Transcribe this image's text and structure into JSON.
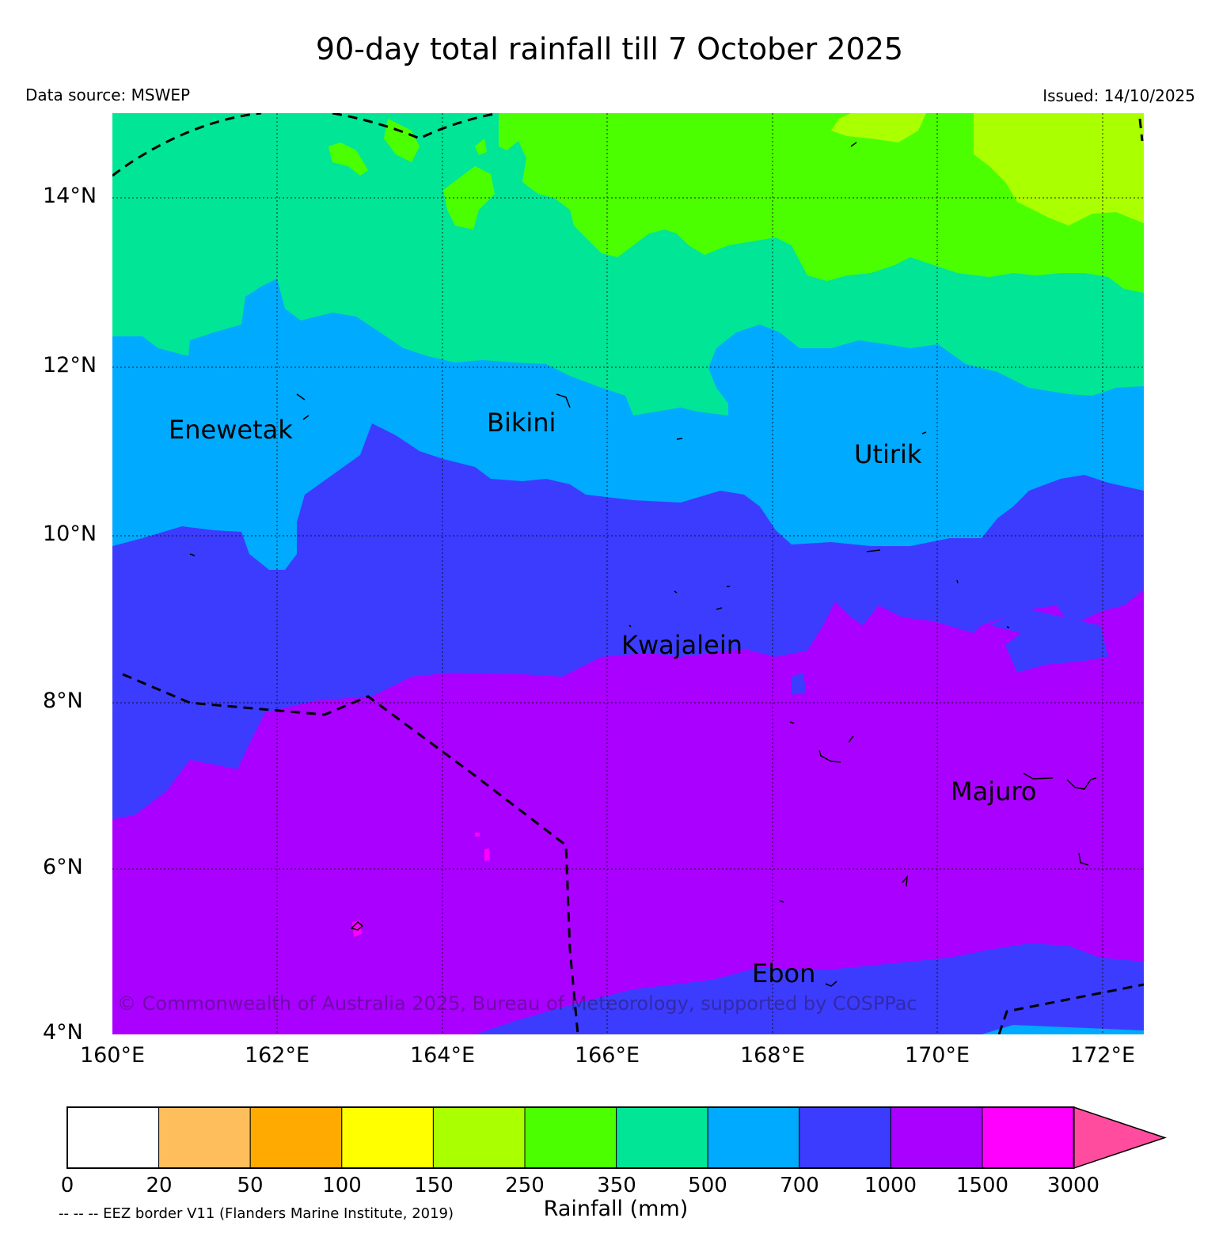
{
  "title": "90-day total rainfall till 7 October 2025",
  "data_source": "Data source: MSWEP",
  "issued": "Issued: 14/10/2025",
  "lat_labels": [
    "14°N",
    "12°N",
    "10°N",
    "8°N",
    "6°N",
    "4°N"
  ],
  "lon_labels": [
    "160°E",
    "162°E",
    "164°E",
    "166°E",
    "168°E",
    "170°E",
    "172°E"
  ],
  "places": [
    "Enewetak",
    "Bikini",
    "Utirik",
    "Kwajalein",
    "Majuro",
    "Ebon"
  ],
  "copyright": "© Commonwealth of Australia 2025, Bureau of Meteorology, supported by COSPPac",
  "colorbar": {
    "ticks": [
      "0",
      "20",
      "50",
      "100",
      "150",
      "250",
      "350",
      "500",
      "700",
      "1000",
      "1500",
      "3000"
    ],
    "colors": [
      "#ffffff",
      "#ffbe5c",
      "#ffaa00",
      "#ffff00",
      "#aaff00",
      "#4cff00",
      "#00e696",
      "#00aaff",
      "#3c3cff",
      "#aa00ff",
      "#ff00ff",
      "#ff4c9f"
    ],
    "label": "Rainfall (mm)"
  },
  "eez_note": "-- -- -- EEZ border V11 (Flanders Marine Institute, 2019)"
}
